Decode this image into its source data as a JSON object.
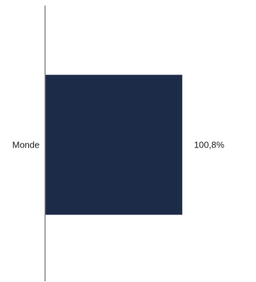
{
  "chart_data": {
    "type": "bar",
    "orientation": "horizontal",
    "categories": [
      "Monde"
    ],
    "values": [
      100.8
    ],
    "value_labels": [
      "100,8%"
    ],
    "xlim": [
      0,
      155
    ],
    "grid": false,
    "colors": {
      "bar": "#1c2b47",
      "axis": "#7f7f7f"
    }
  }
}
